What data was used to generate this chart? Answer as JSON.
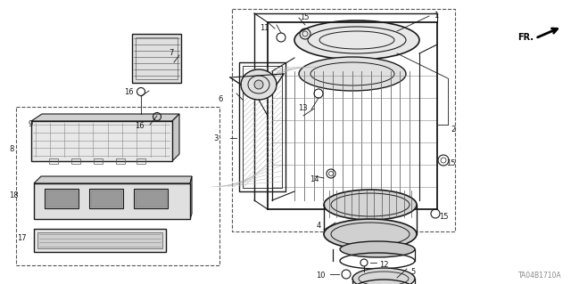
{
  "bg_color": "#ffffff",
  "line_color": "#1a1a1a",
  "fig_width": 6.4,
  "fig_height": 3.19,
  "dpi": 100,
  "diagram_code": "TA04B1710A",
  "fr_label": "FR.",
  "gray": "#888888",
  "dgray": "#444444",
  "lgray": "#cccccc"
}
